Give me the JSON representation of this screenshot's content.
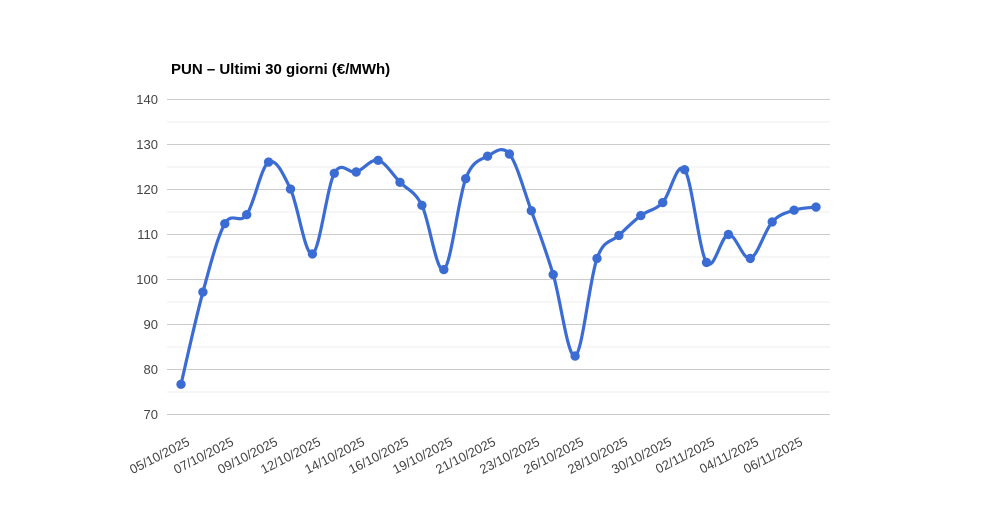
{
  "page": {
    "background_color": "#FFFFFF"
  },
  "chart_data": {
    "type": "line",
    "title": "PUN – Ultimi 30 giorni (€/MWh)",
    "ylabel": "",
    "xlabel": "",
    "unit": "€/MWh",
    "ylim": [
      70,
      140
    ],
    "y_major_ticks": [
      140,
      130,
      120,
      110,
      100,
      90,
      80,
      70
    ],
    "y_minor_gridlines": [
      135,
      125,
      115,
      105,
      95,
      85,
      75
    ],
    "grid": "on",
    "legend": "none",
    "smooth": true,
    "line_color": "#3B6CD4",
    "marker_color": "#3B6CD4",
    "major_gridline_color": "#CCCCCC",
    "minor_gridline_color": "#EDEDED",
    "axis_label_color": "#444444",
    "title_color": "#000000",
    "x": [
      "05/10/2025",
      "06/10/2025",
      "07/10/2025",
      "08/10/2025",
      "09/10/2025",
      "10/10/2025",
      "12/10/2025",
      "13/10/2025",
      "14/10/2025",
      "15/10/2025",
      "16/10/2025",
      "17/10/2025",
      "19/10/2025",
      "20/10/2025",
      "21/10/2025",
      "22/10/2025",
      "23/10/2025",
      "24/10/2025",
      "26/10/2025",
      "27/10/2025",
      "28/10/2025",
      "29/10/2025",
      "30/10/2025",
      "31/10/2025",
      "02/11/2025",
      "03/11/2025",
      "04/11/2025",
      "05/11/2025",
      "06/11/2025",
      "07/11/2025"
    ],
    "x_tick_labels": [
      "05/10/2025",
      "07/10/2025",
      "09/10/2025",
      "12/10/2025",
      "14/10/2025",
      "16/10/2025",
      "19/10/2025",
      "21/10/2025",
      "23/10/2025",
      "26/10/2025",
      "28/10/2025",
      "30/10/2025",
      "02/11/2025",
      "04/11/2025",
      "06/11/2025"
    ],
    "x_tick_every": 2,
    "series": [
      {
        "name": "PUN",
        "values": [
          76.7,
          97.2,
          112.4,
          114.4,
          126.1,
          120.1,
          105.7,
          123.6,
          123.9,
          126.5,
          121.6,
          116.5,
          102.2,
          122.4,
          127.4,
          127.9,
          115.3,
          101.1,
          83.0,
          104.7,
          109.8,
          114.2,
          117.1,
          124.4,
          103.8,
          110.0,
          104.7,
          112.8,
          115.4,
          116.1
        ]
      }
    ]
  }
}
